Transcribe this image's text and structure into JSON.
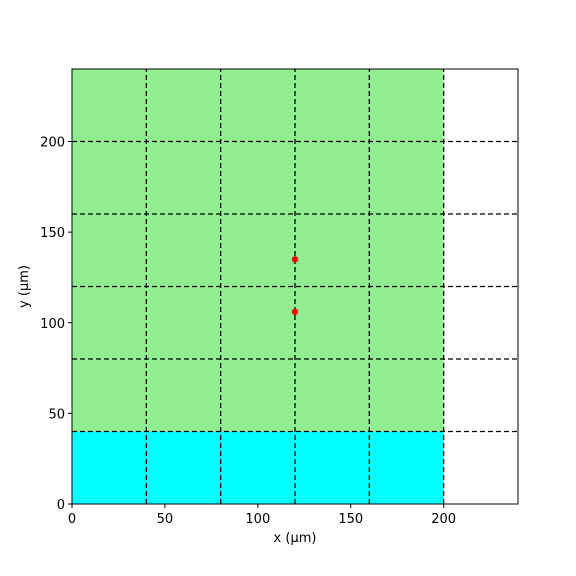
{
  "chart_data": {
    "type": "scatter",
    "title": "",
    "xlabel": "x (μm)",
    "ylabel": "y (μm)",
    "xlim": [
      0,
      240
    ],
    "ylim": [
      0,
      240
    ],
    "xticks": [
      0,
      50,
      100,
      150,
      200
    ],
    "yticks": [
      0,
      50,
      100,
      150,
      200
    ],
    "grid": {
      "style": "dashed",
      "color": "#000000",
      "x_lines": [
        40,
        80,
        120,
        160,
        200
      ],
      "y_lines": [
        40,
        80,
        120,
        160,
        200
      ],
      "x_lines_extent_y": [
        0,
        240
      ],
      "y_lines_extent_x": [
        0,
        240
      ]
    },
    "regions": [
      {
        "x": [
          0,
          200
        ],
        "y": [
          0,
          40
        ],
        "color": "#00ffff"
      },
      {
        "x": [
          0,
          200
        ],
        "y": [
          40,
          240
        ],
        "color": "#90ee90"
      }
    ],
    "series": [
      {
        "x": [
          120,
          120
        ],
        "y": [
          106,
          135
        ],
        "color": "#ff0000"
      }
    ],
    "legend": null
  }
}
